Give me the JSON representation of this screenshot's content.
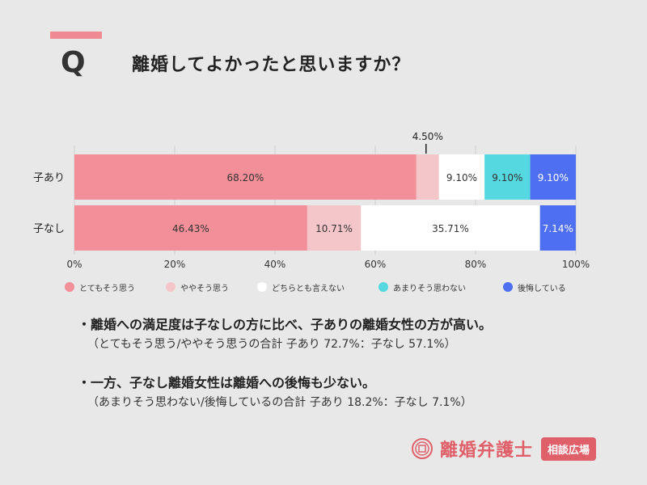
{
  "header": {
    "q_label": "Q",
    "question": "離婚してよかったと思いますか？"
  },
  "chart_data": {
    "type": "bar",
    "orientation": "horizontal",
    "stacked": true,
    "title": "",
    "xlabel": "",
    "ylabel": "",
    "xlim": [
      0,
      100
    ],
    "x_ticks": [
      "0%",
      "20%",
      "40%",
      "60%",
      "80%",
      "100%"
    ],
    "grid": true,
    "legend_position": "bottom",
    "categories": [
      "子あり",
      "子なし"
    ],
    "series": [
      {
        "name": "とてもそう思う",
        "color": "#f28f98",
        "text_color": "#333333",
        "values": [
          68.2,
          46.43
        ],
        "labels": [
          "68.20%",
          "46.43%"
        ]
      },
      {
        "name": "ややそう思う",
        "color": "#f5c6c9",
        "text_color": "#333333",
        "values": [
          4.5,
          10.71
        ],
        "labels": [
          "4.50%",
          "10.71%"
        ]
      },
      {
        "name": "どちらとも言えない",
        "color": "#ffffff",
        "text_color": "#333333",
        "values": [
          9.1,
          35.71
        ],
        "labels": [
          "9.10%",
          "35.71%"
        ]
      },
      {
        "name": "あまりそう思わない",
        "color": "#55d8e0",
        "text_color": "#333333",
        "values": [
          9.1,
          0
        ],
        "labels": [
          "9.10%",
          ""
        ]
      },
      {
        "name": "後悔している",
        "color": "#4f6ff2",
        "text_color": "#ffffff",
        "values": [
          9.1,
          7.14
        ],
        "labels": [
          "9.10%",
          "7.14%"
        ]
      }
    ]
  },
  "findings": [
    {
      "head": "・離婚への満足度は子なしの方に比べ、子ありの離婚女性の方が高い。",
      "sub": "（とてもそう思う/ややそう思うの合計 子あり 72.7%：子なし 57.1%）"
    },
    {
      "head": "・一方、子なし離婚女性は離婚への後悔も少ない。",
      "sub": "（あまりそう思わない/後悔しているの合計  子あり 18.2%：子なし 7.1%）"
    }
  ],
  "brand": {
    "name": "離婚弁護士",
    "tag": "相談広場",
    "icon": "seal-icon"
  }
}
